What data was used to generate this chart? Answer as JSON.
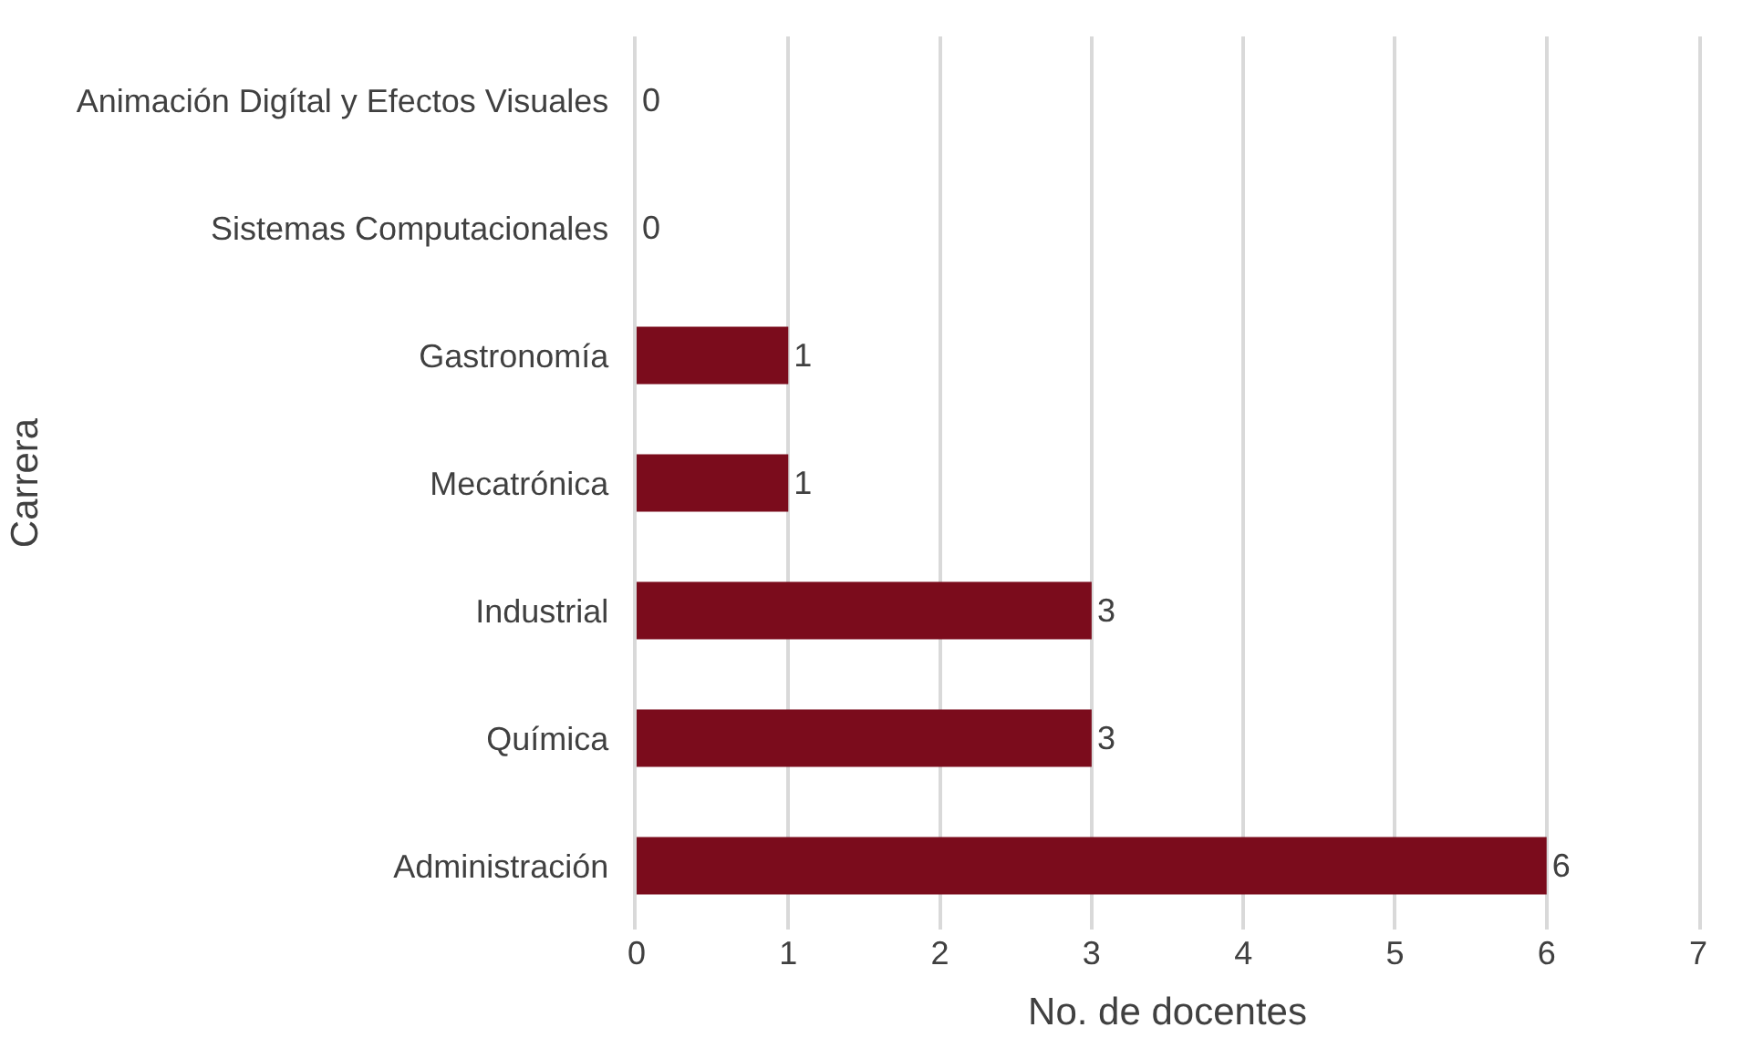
{
  "chart_data": {
    "type": "bar",
    "orientation": "horizontal",
    "xlabel": "No. de docentes",
    "ylabel": "Carrera",
    "categories": [
      "Animación Digítal y Efectos Visuales",
      "Sistemas Computacionales",
      "Gastronomía",
      "Mecatrónica",
      "Industrial",
      "Química",
      "Administración"
    ],
    "values": [
      0,
      0,
      1,
      1,
      3,
      3,
      6
    ],
    "color": "#7b0c1c",
    "xlim": [
      0,
      7
    ],
    "xticks": [
      0,
      1,
      2,
      3,
      4,
      5,
      6,
      7
    ],
    "grid": "x",
    "data_labels": true
  }
}
